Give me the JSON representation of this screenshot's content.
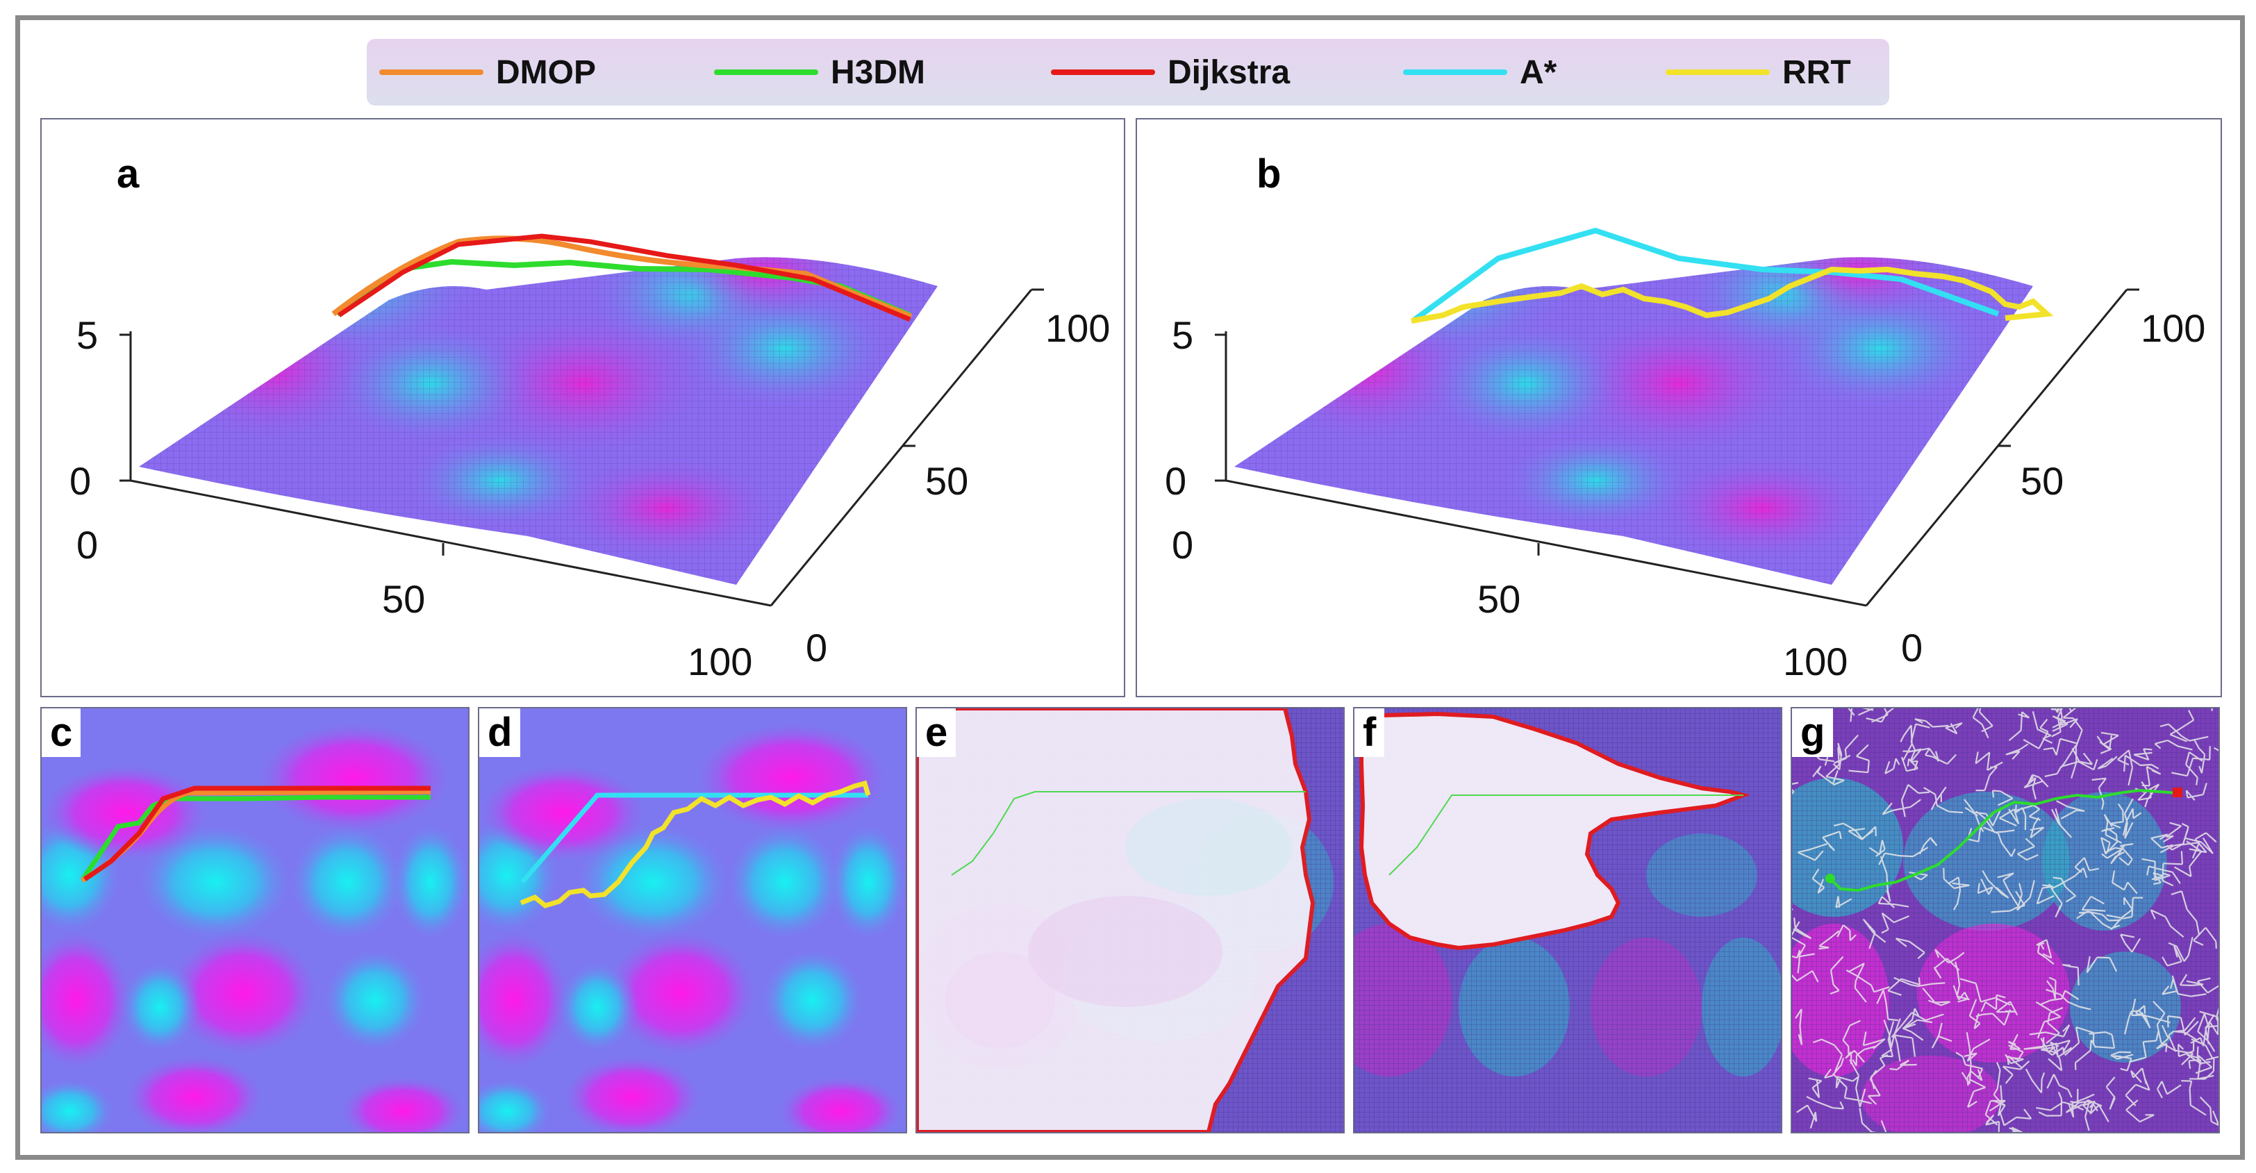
{
  "legend": [
    {
      "label": "DMOP",
      "color": "#f28a2e"
    },
    {
      "label": "H3DM",
      "color": "#2ddc2d"
    },
    {
      "label": "Dijkstra",
      "color": "#e61919"
    },
    {
      "label": "A*",
      "color": "#33e0f2"
    },
    {
      "label": "RRT",
      "color": "#f2e22a"
    }
  ],
  "panels": {
    "a": "a",
    "b": "b",
    "c": "c",
    "d": "d",
    "e": "e",
    "f": "f",
    "g": "g"
  },
  "chart_data": [
    {
      "type": "line",
      "panel": "a",
      "title": "",
      "kind": "3D surface with planned paths",
      "z_ticks": [
        "0",
        "5"
      ],
      "x_ticks": [
        "0",
        "50",
        "100"
      ],
      "y_ticks": [
        "0",
        "50",
        "100"
      ],
      "series": [
        {
          "name": "DMOP",
          "color": "#f28a2e"
        },
        {
          "name": "H3DM",
          "color": "#2ddc2d"
        },
        {
          "name": "Dijkstra",
          "color": "#e61919"
        }
      ]
    },
    {
      "type": "line",
      "panel": "b",
      "title": "",
      "kind": "3D surface with planned paths",
      "z_ticks": [
        "0",
        "5"
      ],
      "x_ticks": [
        "0",
        "50",
        "100"
      ],
      "y_ticks": [
        "0",
        "50",
        "100"
      ],
      "series": [
        {
          "name": "A*",
          "color": "#33e0f2"
        },
        {
          "name": "RRT",
          "color": "#f2e22a"
        }
      ]
    },
    {
      "type": "heatmap",
      "panel": "c",
      "kind": "contour map with DMOP, H3DM, Dijkstra paths"
    },
    {
      "type": "heatmap",
      "panel": "d",
      "kind": "contour map with A*, RRT paths"
    },
    {
      "type": "heatmap",
      "panel": "e",
      "kind": "Dijkstra explored region"
    },
    {
      "type": "heatmap",
      "panel": "f",
      "kind": "A* explored region"
    },
    {
      "type": "heatmap",
      "panel": "g",
      "kind": "RRT sampling tree"
    }
  ],
  "colors": {
    "surface_magenta": "#e22ad8",
    "surface_cyan": "#2fd9e8",
    "surface_base": "#8b6cf0"
  }
}
